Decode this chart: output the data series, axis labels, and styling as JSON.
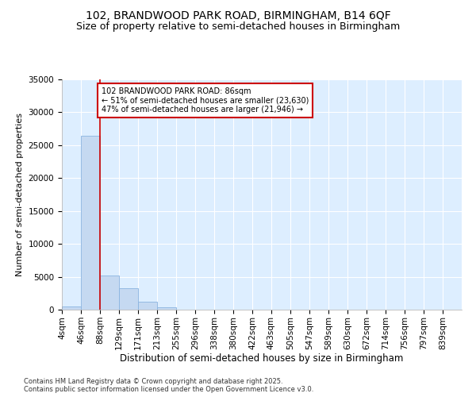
{
  "title": "102, BRANDWOOD PARK ROAD, BIRMINGHAM, B14 6QF",
  "subtitle": "Size of property relative to semi-detached houses in Birmingham",
  "xlabel": "Distribution of semi-detached houses by size in Birmingham",
  "ylabel": "Number of semi-detached properties",
  "property_label": "102 BRANDWOOD PARK ROAD: 86sqm",
  "pct_smaller": 51,
  "pct_larger": 47,
  "n_smaller": 23630,
  "n_larger": 21946,
  "bin_edges": [
    4,
    46,
    88,
    129,
    171,
    213,
    255,
    296,
    338,
    380,
    422,
    463,
    505,
    547,
    589,
    630,
    672,
    714,
    756,
    797,
    839
  ],
  "bar_heights": [
    500,
    26400,
    5200,
    3200,
    1200,
    400,
    50,
    0,
    0,
    0,
    0,
    0,
    0,
    0,
    0,
    0,
    0,
    0,
    0,
    0
  ],
  "bar_color": "#c5d9f1",
  "bar_edge_color": "#8ab4e0",
  "vline_x": 88,
  "vline_color": "#cc0000",
  "annotation_box_color": "#cc0000",
  "ylim": [
    0,
    35000
  ],
  "yticks": [
    0,
    5000,
    10000,
    15000,
    20000,
    25000,
    30000,
    35000
  ],
  "plot_bg_color": "#ddeeff",
  "footer": "Contains HM Land Registry data © Crown copyright and database right 2025.\nContains public sector information licensed under the Open Government Licence v3.0.",
  "title_fontsize": 10,
  "subtitle_fontsize": 9,
  "tick_fontsize": 7.5,
  "ylabel_fontsize": 8,
  "xlabel_fontsize": 8.5
}
